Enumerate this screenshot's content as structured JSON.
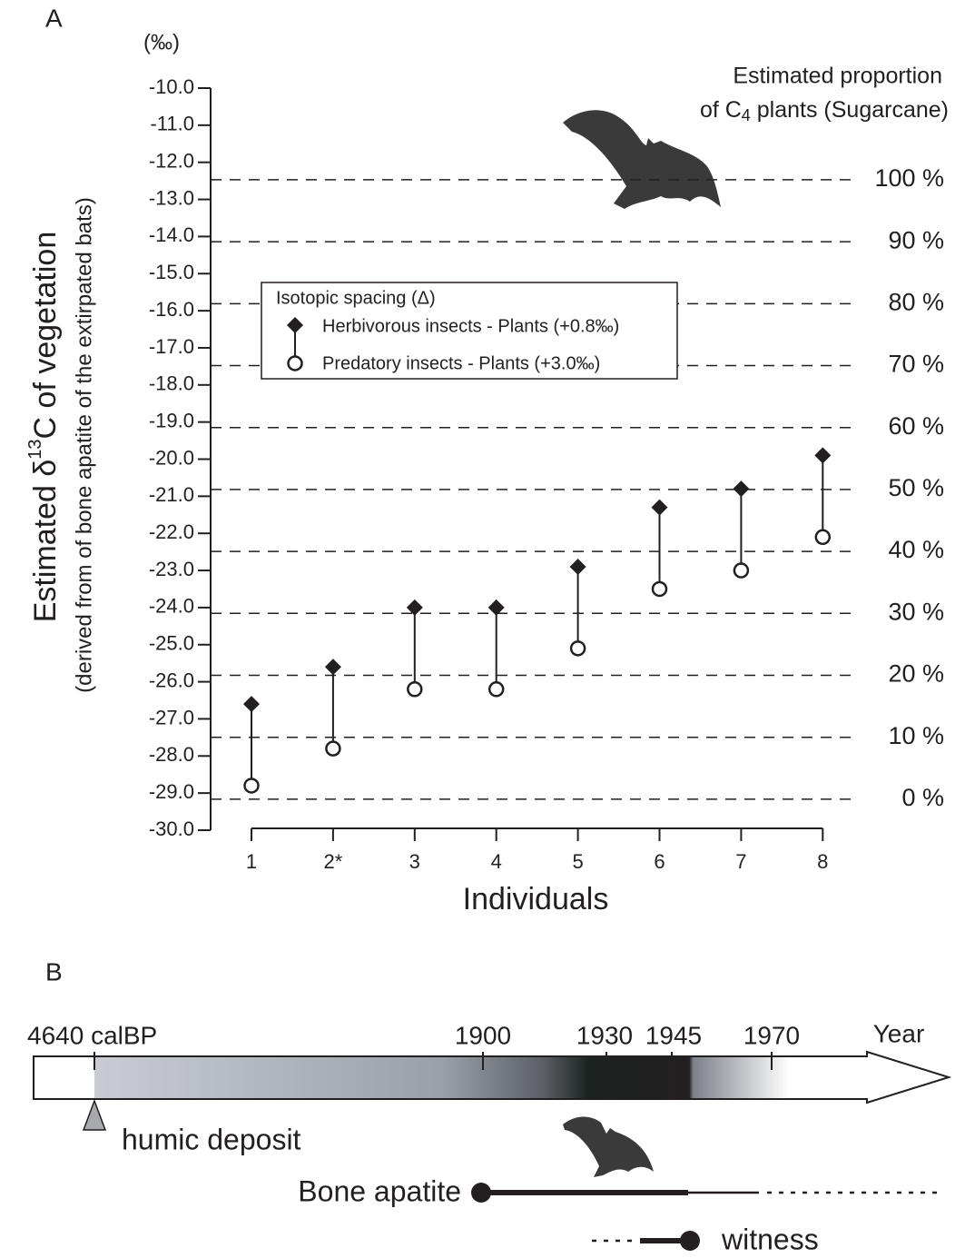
{
  "chart_data": {
    "type": "dumbbell",
    "panel_label": "A",
    "unit_label": "(‰)",
    "y_title_parts": [
      "Estimated δ",
      "13",
      "C of vegetation"
    ],
    "y_subtitle": "(derived from of bone apatite of the extirpated bats)",
    "x_title": "Individuals",
    "y2_title_line1": "Estimated proportion",
    "y2_title_parts": [
      "of C",
      "4",
      " plants (Sugarcane)"
    ],
    "categories": [
      "1",
      "2*",
      "3",
      "4",
      "5",
      "6",
      "7",
      "8"
    ],
    "legend_title": "Isotopic spacing (Δ)",
    "series": [
      {
        "name": "Herbivorous insects - Plants (+0.8‰)",
        "color": "#231f20",
        "marker": "diamond",
        "values": [
          -26.6,
          -25.6,
          -24.0,
          -24.0,
          -22.9,
          -21.3,
          -20.8,
          -19.9
        ]
      },
      {
        "name": "Predatory insects - Plants (+3.0‰)",
        "color": "#231f20",
        "marker": "circle",
        "values": [
          -28.8,
          -27.8,
          -26.2,
          -26.2,
          -25.1,
          -23.5,
          -23.0,
          -22.1
        ]
      }
    ],
    "ylim": [
      -30,
      -10
    ],
    "yticks": [
      {
        "value": -10,
        "label": "-10.0"
      },
      {
        "value": -11,
        "label": "-11.0"
      },
      {
        "value": -12,
        "label": "-12.0"
      },
      {
        "value": -13,
        "label": "-13.0"
      },
      {
        "value": -14,
        "label": "-14.0"
      },
      {
        "value": -15,
        "label": "-15.0"
      },
      {
        "value": -16,
        "label": "-16.0"
      },
      {
        "value": -17,
        "label": "-17.0"
      },
      {
        "value": -18,
        "label": "-18.0"
      },
      {
        "value": -19,
        "label": "-19.0"
      },
      {
        "value": -20,
        "label": "-20.0"
      },
      {
        "value": -21,
        "label": "-21.0"
      },
      {
        "value": -22,
        "label": "-22.0"
      },
      {
        "value": -23,
        "label": "-23.0"
      },
      {
        "value": -24,
        "label": "-24.0"
      },
      {
        "value": -25,
        "label": "-25.0"
      },
      {
        "value": -26,
        "label": "-26.0"
      },
      {
        "value": -27,
        "label": "-27.0"
      },
      {
        "value": -28,
        "label": "-28.0"
      },
      {
        "value": -29,
        "label": "-29.0"
      },
      {
        "value": -30,
        "label": "-30.0"
      }
    ],
    "y2lim": [
      -5.0,
      114.8
    ],
    "y2ticks": [
      {
        "value": 0,
        "label": "0 %"
      },
      {
        "value": 10,
        "label": "10 %"
      },
      {
        "value": 20,
        "label": "20 %"
      },
      {
        "value": 30,
        "label": "30 %"
      },
      {
        "value": 40,
        "label": "40 %"
      },
      {
        "value": 50,
        "label": "50 %"
      },
      {
        "value": 60,
        "label": "60 %"
      },
      {
        "value": 70,
        "label": "70 %"
      },
      {
        "value": 80,
        "label": "80 %"
      },
      {
        "value": 90,
        "label": "90 %"
      },
      {
        "value": 100,
        "label": "100 %"
      }
    ],
    "y2_grid": true
  },
  "timeline": {
    "panel_label": "B",
    "start_label": "4640 calBP",
    "year_labels": [
      "1900",
      "1930",
      "1945",
      "1970"
    ],
    "axis_label": "Year",
    "humic_label": "humic deposit",
    "bone_label": "Bone apatite",
    "witness_label": "witness"
  }
}
